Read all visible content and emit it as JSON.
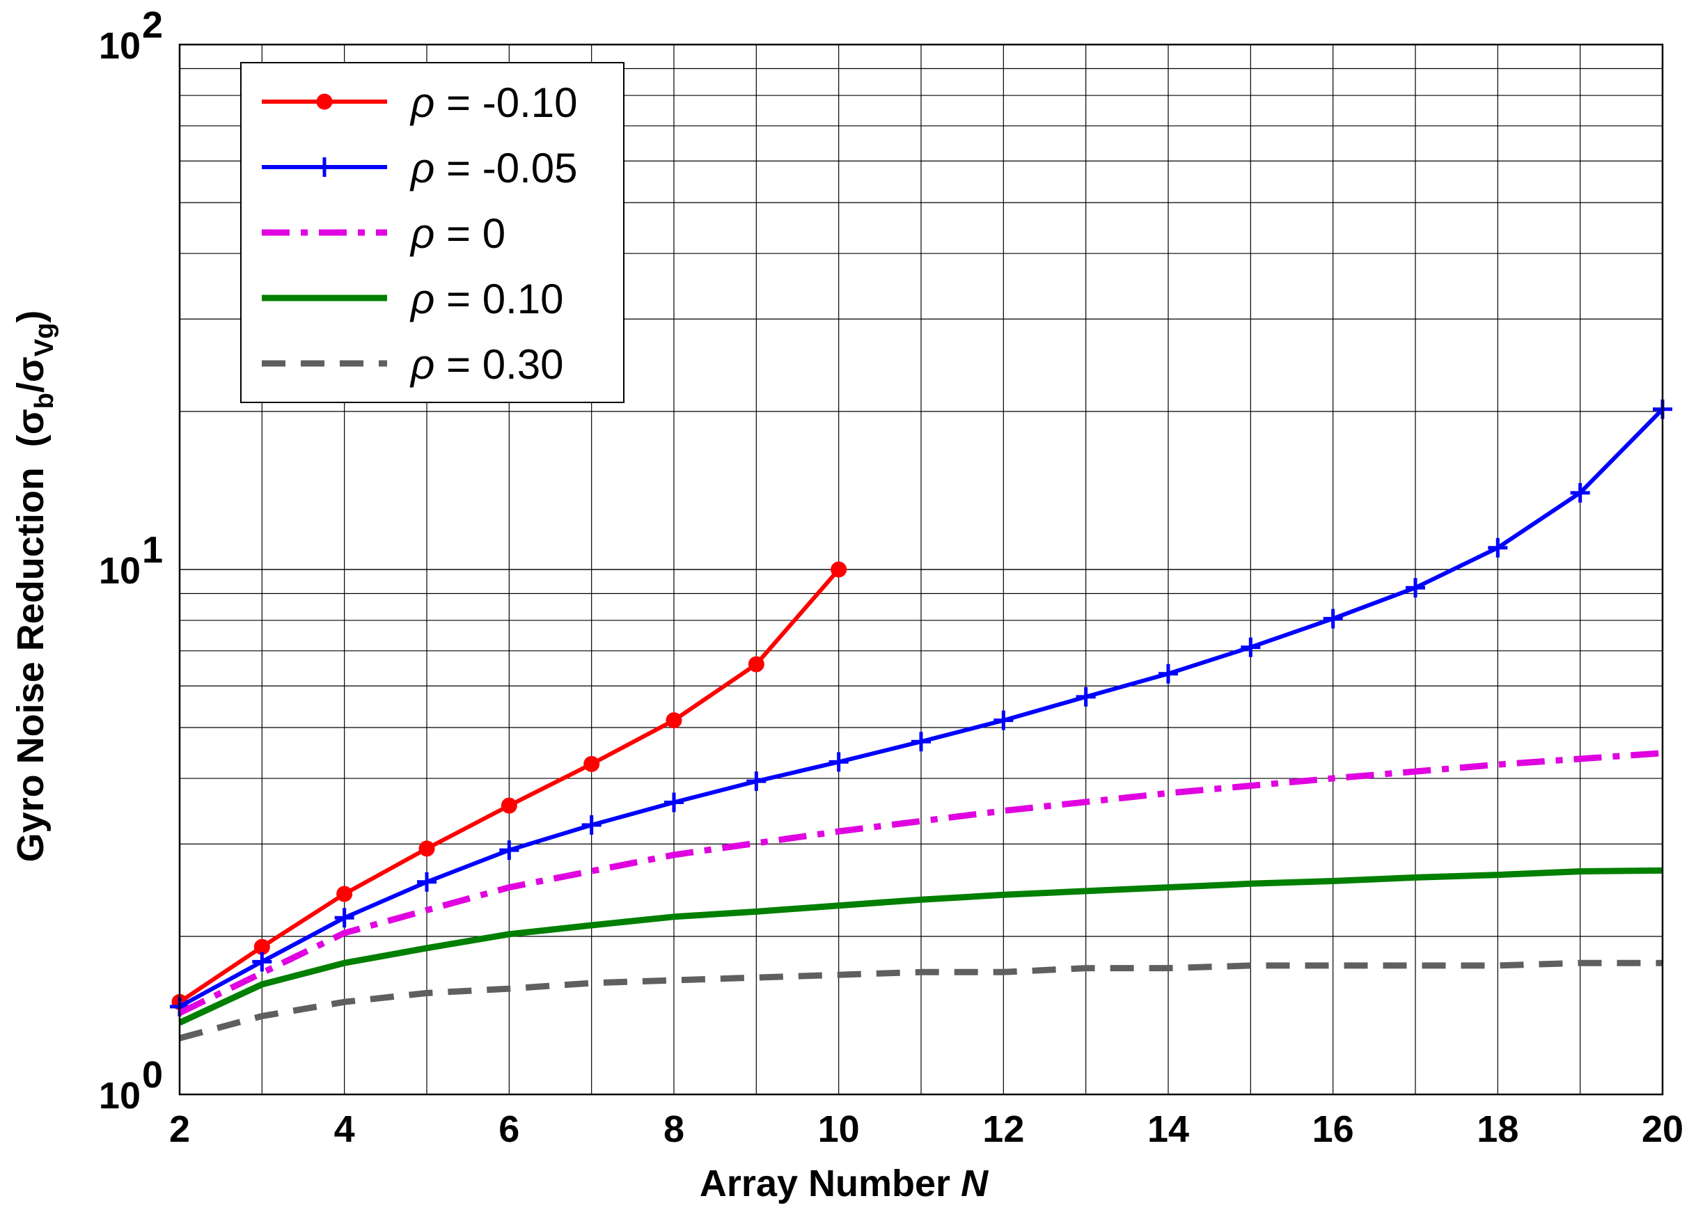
{
  "chart_data": {
    "type": "line",
    "xlabel": "Array Number",
    "xlabel_var": "N",
    "ylabel": "Gyro Noise Reduction",
    "ylabel_symbol": "σ",
    "ylabel_sub1": "b",
    "ylabel_sub2": "Vg",
    "ylabel_open": "(",
    "ylabel_slash": "/",
    "ylabel_close": ")",
    "xlim": [
      2,
      20
    ],
    "ylim": [
      1,
      100
    ],
    "yscale": "log",
    "grid": true,
    "legend_position": "top-left",
    "x_ticks": [
      2,
      4,
      6,
      8,
      10,
      12,
      14,
      16,
      18,
      20
    ],
    "x_tick_labels": [
      "2",
      "4",
      "6",
      "8",
      "10",
      "12",
      "14",
      "16",
      "18",
      "20"
    ],
    "y_ticks": [
      {
        "value": 1,
        "base": "10",
        "exp": "0"
      },
      {
        "value": 10,
        "base": "10",
        "exp": "1"
      },
      {
        "value": 100,
        "base": "10",
        "exp": "2"
      }
    ],
    "legend_symbol": "ρ",
    "series": [
      {
        "name": "= -0.10",
        "color": "#ff0000",
        "style": "solid",
        "marker": "circle",
        "x": [
          2,
          3,
          4,
          5,
          6,
          7,
          8,
          9,
          10
        ],
        "y": [
          1.5,
          1.91,
          2.41,
          2.94,
          3.55,
          4.26,
          5.16,
          6.6,
          10.0
        ]
      },
      {
        "name": "= -0.05",
        "color": "#0000ff",
        "style": "solid",
        "marker": "plus",
        "x": [
          2,
          3,
          4,
          5,
          6,
          7,
          8,
          9,
          10,
          11,
          12,
          13,
          14,
          15,
          16,
          17,
          18,
          19,
          20
        ],
        "y": [
          1.47,
          1.79,
          2.17,
          2.54,
          2.92,
          3.26,
          3.6,
          3.95,
          4.3,
          4.7,
          5.16,
          5.72,
          6.33,
          7.11,
          8.06,
          9.23,
          11.0,
          14.0,
          20.2
        ]
      },
      {
        "name": "= 0",
        "color": "#e000e0",
        "style": "dashdot",
        "marker": "none",
        "x": [
          2,
          4,
          6,
          8,
          10,
          12,
          14,
          16,
          18,
          20
        ],
        "y": [
          1.43,
          2.03,
          2.48,
          2.86,
          3.17,
          3.47,
          3.75,
          4.0,
          4.25,
          4.47
        ]
      },
      {
        "name": "= 0.10",
        "color": "#007f00",
        "style": "solid",
        "marker": "none",
        "x": [
          2,
          3,
          4,
          5,
          6,
          7,
          8,
          9,
          10,
          11,
          12,
          13,
          14,
          15,
          16,
          17,
          18,
          19,
          20
        ],
        "y": [
          1.37,
          1.62,
          1.78,
          1.9,
          2.02,
          2.1,
          2.18,
          2.23,
          2.29,
          2.35,
          2.4,
          2.44,
          2.48,
          2.52,
          2.55,
          2.59,
          2.62,
          2.66,
          2.67
        ]
      },
      {
        "name": "= 0.30",
        "color": "#5f5f5f",
        "style": "dashed",
        "marker": "none",
        "x": [
          2,
          3,
          4,
          5,
          6,
          7,
          8,
          9,
          10,
          11,
          12,
          13,
          14,
          15,
          16,
          17,
          18,
          19,
          20
        ],
        "y": [
          1.28,
          1.41,
          1.5,
          1.56,
          1.59,
          1.63,
          1.65,
          1.67,
          1.69,
          1.71,
          1.71,
          1.74,
          1.74,
          1.76,
          1.76,
          1.76,
          1.76,
          1.78,
          1.78
        ]
      }
    ]
  }
}
